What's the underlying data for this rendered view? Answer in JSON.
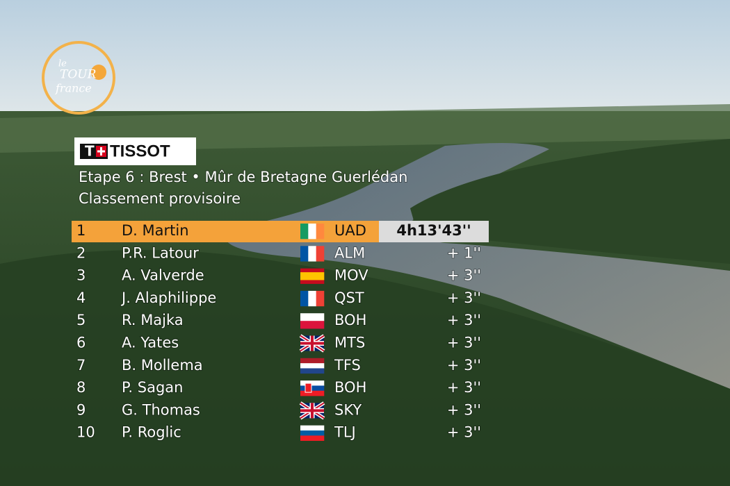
{
  "logo": {
    "lines": [
      "le",
      "TOUR",
      "france"
    ]
  },
  "sponsor": "TISSOT",
  "header": {
    "title": "Etape 6 : Brest • Mûr de Bretagne Guerlédan",
    "subtitle": "Classement provisoire"
  },
  "table": {
    "rows": [
      [
        1,
        "D. Martin",
        "UAD",
        "4h13'43''"
      ],
      [
        2,
        "P.R. Latour",
        "ALM",
        "+ 1''"
      ],
      [
        3,
        "A. Valverde",
        "MOV",
        "+ 3''"
      ],
      [
        4,
        "J. Alaphilippe",
        "QST",
        "+ 3''"
      ],
      [
        5,
        "R. Majka",
        "BOH",
        "+ 3''"
      ],
      [
        6,
        "A. Yates",
        "MTS",
        "+ 3''"
      ],
      [
        7,
        "B. Mollema",
        "TFS",
        "+ 3''"
      ],
      [
        8,
        "P. Sagan",
        "BOH",
        "+ 3''"
      ],
      [
        9,
        "G. Thomas",
        "SKY",
        "+ 3''"
      ],
      [
        10,
        "P. Roglic",
        "TLJ",
        "+ 3''"
      ]
    ]
  }
}
